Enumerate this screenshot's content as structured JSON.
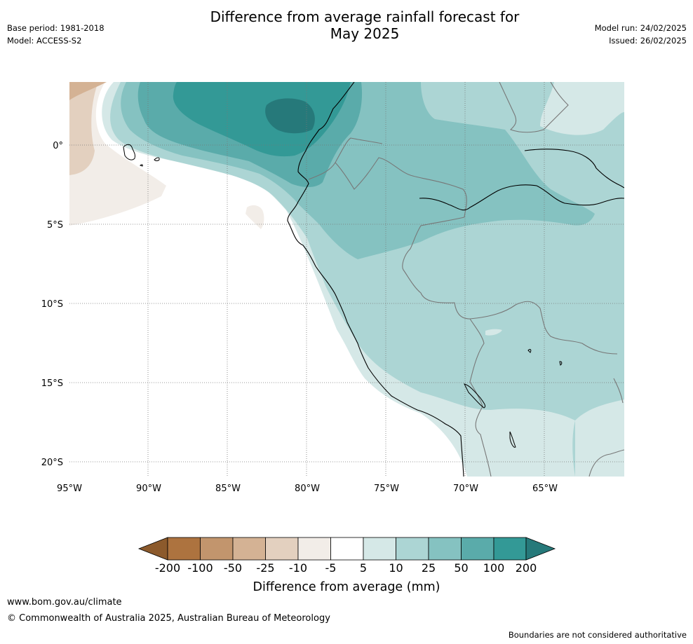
{
  "header": {
    "title_line1": "Difference from average rainfall forecast for",
    "title_line2": "May 2025",
    "base_period": "Base period: 1981-2018",
    "model": "Model: ACCESS-S2",
    "model_run": "Model run: 24/02/2025",
    "issued": "Issued: 26/02/2025"
  },
  "map": {
    "lat_labels": [
      "0°",
      "5°S",
      "10°S",
      "15°S",
      "20°S"
    ],
    "lon_labels": [
      "95°W",
      "90°W",
      "85°W",
      "80°W",
      "75°W",
      "70°W",
      "65°W"
    ],
    "colors": {
      "dry_200": "#8c5a2c",
      "dry_100": "#ad733f",
      "dry_50": "#c2956d",
      "dry_25": "#d4b294",
      "dry_10": "#e3d0bf",
      "dry_5": "#f2ede8",
      "neutral": "#ffffff",
      "wet_5": "#d5e8e7",
      "wet_10": "#acd5d4",
      "wet_25": "#85c2c1",
      "wet_50": "#5aabaa",
      "wet_100": "#339996",
      "wet_200": "#26797a"
    }
  },
  "colorbar": {
    "labels": [
      "-200",
      "-100",
      "-50",
      "-25",
      "-10",
      "-5",
      "5",
      "10",
      "25",
      "50",
      "100",
      "200"
    ],
    "title": "Difference from average (mm)"
  },
  "footer": {
    "url": "www.bom.gov.au/climate",
    "copyright": "© Commonwealth of Australia 2025, Australian Bureau of Meteorology",
    "disclaimer": "Boundaries are not considered authoritative"
  }
}
